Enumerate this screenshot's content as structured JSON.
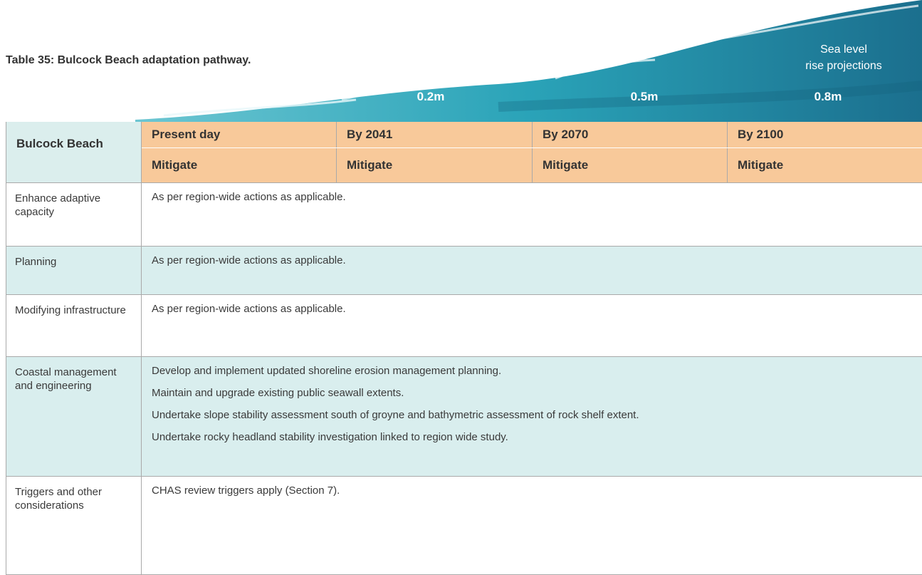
{
  "title": "Table 35: Bulcock Beach adaptation pathway.",
  "projections": {
    "caption": [
      "Sea level",
      "rise projections"
    ],
    "levels": [
      "0.2m",
      "0.5m",
      "0.8m"
    ]
  },
  "table": {
    "corner": "Bulcock Beach",
    "periods": [
      "Present day",
      "By 2041",
      "By 2070",
      "By 2100"
    ],
    "actions": [
      "Mitigate",
      "Mitigate",
      "Mitigate",
      "Mitigate"
    ],
    "rows": [
      {
        "label": "Enhance adaptive capacity",
        "items": [
          "As per region-wide actions as applicable."
        ]
      },
      {
        "label": "Planning",
        "items": [
          "As per region-wide actions as applicable."
        ]
      },
      {
        "label": "Modifying infrastructure",
        "items": [
          "As per region-wide actions as applicable."
        ]
      },
      {
        "label": "Coastal management and engineering",
        "items": [
          "Develop and implement updated shoreline erosion management planning.",
          "Maintain and upgrade existing public seawall extents.",
          "Undertake slope stability assessment south of groyne and bathymetric assessment of rock shelf extent.",
          "Undertake rocky headland stability investigation linked to region wide study."
        ]
      },
      {
        "label": "Triggers and other considerations",
        "items": [
          "CHAS review triggers apply (Section 7)."
        ]
      }
    ]
  }
}
